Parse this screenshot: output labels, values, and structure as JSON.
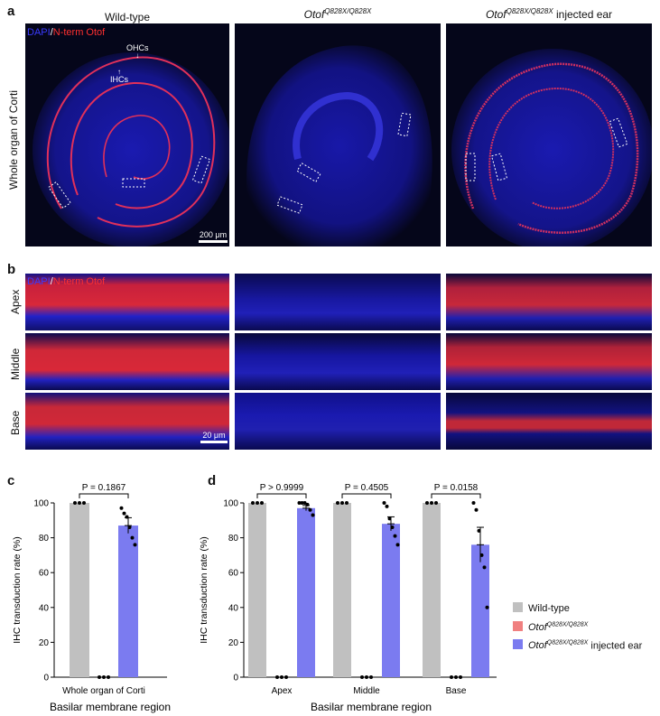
{
  "panel_a": {
    "letter": "a",
    "columns": [
      {
        "title": "Wild-type"
      },
      {
        "title_base": "Otof",
        "title_sup": "Q828X/Q828X",
        "title_tail": ""
      },
      {
        "title_base": "Otof",
        "title_sup": "Q828X/Q828X",
        "title_tail": " injected ear"
      }
    ],
    "row_label": "Whole organ of Corti",
    "stain_dapi": "DAPI",
    "stain_sep": "/",
    "stain_otof": "N-term Otof",
    "label_ohcs": "OHCs",
    "label_ihcs": "IHCs",
    "scalebar": "200 μm"
  },
  "panel_b": {
    "letter": "b",
    "rows": [
      "Apex",
      "Middle",
      "Base"
    ],
    "stain_dapi": "DAPI",
    "stain_sep": "/",
    "stain_otof": "N-term Otof",
    "scalebar": "20 μm"
  },
  "colors": {
    "wildtype": "#c0c0c0",
    "mutant": "#f08080",
    "injected": "#7b7bf0",
    "dapi": "#2a2aff",
    "otof": "#ff2a2a"
  },
  "legend": {
    "items": [
      {
        "label": "Wild-type",
        "color": "#c0c0c0"
      },
      {
        "label_base": "Otof",
        "label_sup": "Q828X/Q828X",
        "label_tail": "",
        "color": "#f08080"
      },
      {
        "label_base": "Otof",
        "label_sup": "Q828X/Q828X",
        "label_tail": " injected ear",
        "color": "#7b7bf0"
      }
    ]
  },
  "chart_data": [
    {
      "panel": "c",
      "type": "bar",
      "ylabel": "IHC transduction rate (%)",
      "xlabel": "Basilar membrane region",
      "ylim": [
        0,
        100
      ],
      "yticks": [
        0,
        20,
        40,
        60,
        80,
        100
      ],
      "categories": [
        "Whole organ of Corti"
      ],
      "series": [
        {
          "name": "Wild-type",
          "values": [
            100
          ],
          "points": [
            [
              100,
              100,
              100
            ]
          ]
        },
        {
          "name": "OtofQ828X/Q828X",
          "values": [
            0
          ],
          "points": [
            [
              0,
              0,
              0
            ]
          ]
        },
        {
          "name": "OtofQ828X/Q828X injected ear",
          "values": [
            87
          ],
          "sem": [
            4.5
          ],
          "points": [
            [
              97,
              94,
              92,
              86,
              80,
              76
            ]
          ]
        }
      ],
      "stats": [
        {
          "category": "Whole organ of Corti",
          "text": "P = 0.1867"
        }
      ]
    },
    {
      "panel": "d",
      "type": "bar",
      "ylabel": "IHC transduction rate (%)",
      "xlabel": "Basilar membrane region",
      "ylim": [
        0,
        100
      ],
      "yticks": [
        0,
        20,
        40,
        60,
        80,
        100
      ],
      "categories": [
        "Apex",
        "Middle",
        "Base"
      ],
      "series": [
        {
          "name": "Wild-type",
          "values": [
            100,
            100,
            100
          ],
          "points": [
            [
              100,
              100,
              100
            ],
            [
              100,
              100,
              100
            ],
            [
              100,
              100,
              100
            ]
          ]
        },
        {
          "name": "OtofQ828X/Q828X",
          "values": [
            0,
            0,
            0
          ],
          "points": [
            [
              0,
              0,
              0
            ],
            [
              0,
              0,
              0
            ],
            [
              0,
              0,
              0
            ]
          ]
        },
        {
          "name": "OtofQ828X/Q828X injected ear",
          "values": [
            97,
            88,
            76
          ],
          "sem": [
            1.5,
            4,
            10
          ],
          "points": [
            [
              100,
              100,
              100,
              99,
              96,
              93
            ],
            [
              100,
              98,
              91,
              86,
              81,
              76
            ],
            [
              100,
              96,
              84,
              70,
              63,
              40
            ]
          ]
        }
      ],
      "stats": [
        {
          "category": "Apex",
          "text": "P > 0.9999"
        },
        {
          "category": "Middle",
          "text": "P = 0.4505"
        },
        {
          "category": "Base",
          "text": "P = 0.0158"
        }
      ]
    }
  ],
  "panel_c": {
    "letter": "c"
  },
  "panel_d": {
    "letter": "d"
  }
}
